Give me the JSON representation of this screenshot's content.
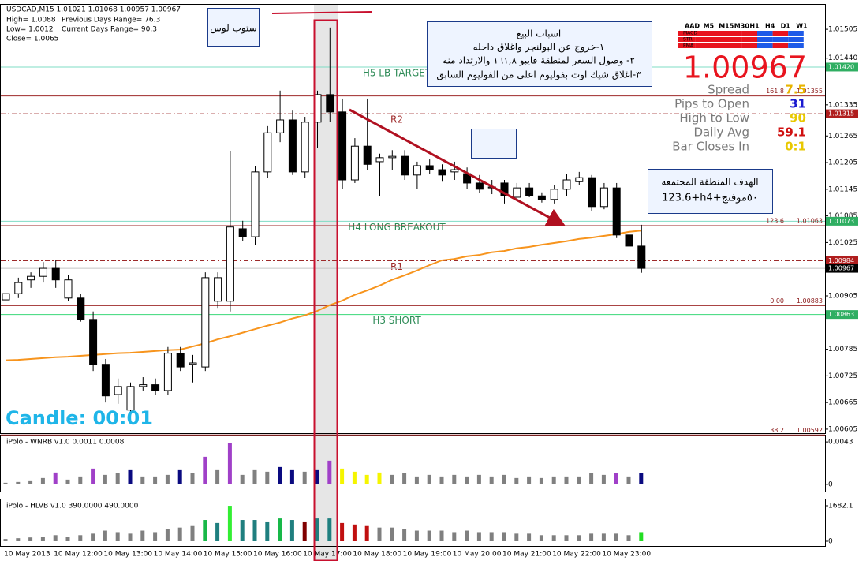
{
  "chart_data": [
    {
      "type": "candlestick",
      "title": "USDCAD,M15  1.01021 1.01068 1.00957 1.00967",
      "categories": [
        "10 May 2013",
        null,
        null,
        null,
        "10 May 12:00",
        null,
        null,
        null,
        "10 May 13:00",
        null,
        null,
        null,
        "10 May 14:00",
        null,
        null,
        null,
        "10 May 15:00",
        null,
        null,
        null,
        "10 May 16:00",
        null,
        null,
        null,
        "10 May 17:00",
        null,
        null,
        null,
        "10 May 18:00",
        null,
        null,
        null,
        "10 May 19:00",
        null,
        null,
        null,
        "10 May 20:00",
        null,
        null,
        null,
        "10 May 21:00",
        null,
        null,
        null,
        "10 May 22:00",
        null,
        null,
        null,
        "10 May 23:00",
        null,
        null,
        null
      ],
      "open": [
        1.00896,
        1.0091,
        1.00941,
        1.00949,
        1.00967,
        1.009,
        1.009,
        1.00852,
        1.00751,
        1.00683,
        1.00648,
        1.00701,
        1.00705,
        1.00692,
        1.00776,
        1.00751,
        1.00745,
        1.00893,
        1.00893,
        1.01056,
        1.01038,
        1.01184,
        1.01272,
        1.01301,
        1.01184,
        1.01296,
        1.01358,
        1.01319,
        1.01166,
        1.01242,
        1.01207,
        1.01216,
        1.01219,
        1.01177,
        1.01198,
        1.01189,
        1.01184,
        1.0118,
        1.01159,
        1.01148,
        1.01159,
        1.01127,
        1.01148,
        1.0113,
        1.01122,
        1.01145,
        1.01162,
        1.01171,
        1.01106,
        1.01148,
        1.01042,
        1.01017
      ],
      "high": [
        1.00932,
        1.00946,
        1.00958,
        1.00981,
        1.00985,
        1.00953,
        1.0091,
        1.0087,
        1.00763,
        1.00719,
        1.0071,
        1.00722,
        1.00719,
        1.0079,
        1.0079,
        1.00772,
        1.00958,
        1.00958,
        1.0123,
        1.01074,
        1.01198,
        1.01287,
        1.01367,
        1.01322,
        1.01308,
        1.01367,
        1.01509,
        1.01349,
        1.0126,
        1.01349,
        1.01225,
        1.01233,
        1.01233,
        1.01207,
        1.01212,
        1.01201,
        1.01207,
        1.01194,
        1.01177,
        1.01166,
        1.01166,
        1.01159,
        1.01159,
        1.01138,
        1.01154,
        1.0118,
        1.01184,
        1.01177,
        1.01159,
        1.01159,
        1.01065,
        1.01065
      ],
      "low": [
        1.00882,
        1.009,
        1.00923,
        1.00935,
        1.00923,
        1.00893,
        1.00847,
        1.00736,
        1.00665,
        1.00662,
        1.00639,
        1.00692,
        1.00683,
        1.00683,
        1.00736,
        1.0071,
        1.00736,
        1.00878,
        1.0087,
        1.01029,
        1.0102,
        1.01171,
        1.01251,
        1.01177,
        1.01171,
        1.01237,
        1.01296,
        1.01145,
        1.01159,
        1.01189,
        1.0113,
        1.01189,
        1.01166,
        1.01145,
        1.0118,
        1.01162,
        1.01166,
        1.01145,
        1.01136,
        1.01134,
        1.01113,
        1.01118,
        1.01127,
        1.01115,
        1.01113,
        1.0113,
        1.01154,
        1.01095,
        1.011,
        1.01035,
        1.01012,
        1.00957
      ],
      "close": [
        1.0091,
        1.00935,
        1.00949,
        1.00967,
        1.00941,
        1.00941,
        1.00852,
        1.00751,
        1.0068,
        1.00701,
        1.00701,
        1.00705,
        1.00692,
        1.00776,
        1.00745,
        1.00754,
        1.00946,
        1.00946,
        1.0106,
        1.01038,
        1.01184,
        1.01272,
        1.01301,
        1.01184,
        1.01296,
        1.01358,
        1.01319,
        1.01166,
        1.01242,
        1.01201,
        1.01216,
        1.01219,
        1.01177,
        1.01198,
        1.01189,
        1.01177,
        1.01189,
        1.01159,
        1.01145,
        1.0115,
        1.0113,
        1.01148,
        1.0113,
        1.01122,
        1.01145,
        1.01166,
        1.01171,
        1.01106,
        1.01148,
        1.01042,
        1.01017,
        1.00967
      ],
      "up_color": "#ffffff",
      "down_color": "#000000",
      "moving_average": {
        "color": "#f7941d",
        "values": [
          1.0076,
          1.00761,
          1.00763,
          1.00765,
          1.00767,
          1.00768,
          1.0077,
          1.00772,
          1.00774,
          1.00776,
          1.00777,
          1.00779,
          1.00781,
          1.00783,
          1.00784,
          1.00791,
          1.00798,
          1.00807,
          1.00814,
          1.00822,
          1.0083,
          1.00838,
          1.00845,
          1.00854,
          1.00861,
          1.00871,
          1.00884,
          1.00894,
          1.00907,
          1.00917,
          1.00928,
          1.00941,
          1.00951,
          1.00962,
          1.00974,
          1.00985,
          1.00988,
          1.00994,
          1.00997,
          1.01003,
          1.01006,
          1.01012,
          1.01015,
          1.0102,
          1.01024,
          1.01028,
          1.01033,
          1.01036,
          1.0104,
          1.01044,
          1.01049,
          1.01052
        ]
      },
      "ylim": [
        1.00596,
        1.01562
      ],
      "yticks": [
        1.01505,
        {
          "value": 1.0144,
          "label": "1.01440"
        },
        1.01335,
        1.01265,
        1.01205,
        1.01145,
        1.01085,
        1.01025,
        1.00905,
        1.00785,
        1.00725,
        1.00665,
        1.00605
      ],
      "grid": false,
      "levels": [
        {
          "value": 1.0142,
          "name": "H5 LB TARGET",
          "color": "#7fdcc4",
          "tag": "1.01420",
          "tag_color": "#2fae62"
        },
        {
          "value": 1.01355,
          "fib": "161.8",
          "color": "#9e2a2a"
        },
        {
          "value": 1.01315,
          "name": "R2",
          "color": "#9e2a2a",
          "dash": true,
          "tag": "1.01315",
          "tag_color": "#b01e1e"
        },
        {
          "value": 1.01073,
          "name": "H4 LONG BREAKOUT",
          "color": "#7fdcc4",
          "tag": "1.01073",
          "tag_color": "#2fae62"
        },
        {
          "value": 1.01063,
          "fib": "123.6",
          "color": "#9e2a2a"
        },
        {
          "value": 1.00984,
          "name": "R1",
          "color": "#9e2a2a",
          "dash": true,
          "tag": "1.00984",
          "tag_color": "#b01e1e"
        },
        {
          "value": 1.00967,
          "color": "#c4c4c4",
          "tag": "1.00967",
          "tag_color": "#000000"
        },
        {
          "value": 1.00883,
          "fib": "0.00",
          "color": "#9e2a2a"
        },
        {
          "value": 1.00863,
          "name": "H3 SHORT",
          "color": "#3ad878",
          "tag": "1.00863",
          "tag_color": "#2fae62"
        },
        {
          "value": 1.00592,
          "fib": "38.2",
          "color": "#9e2a2a"
        }
      ]
    },
    {
      "type": "bar",
      "title": "iPolo - WNRB v1.0 0.0011 0.0008",
      "values": [
        0.00016,
        0.00024,
        0.0004,
        0.00064,
        0.0012,
        0.00048,
        0.0008,
        0.0016,
        0.00096,
        0.00112,
        0.00144,
        0.0008,
        0.0008,
        0.00096,
        0.00144,
        0.00112,
        0.0028,
        0.00144,
        0.0042,
        0.00096,
        0.00144,
        0.00128,
        0.00176,
        0.00144,
        0.00128,
        0.00144,
        0.0024,
        0.0016,
        0.00128,
        0.00096,
        0.0012,
        0.00096,
        0.00112,
        0.0008,
        0.00096,
        0.0008,
        0.00096,
        0.0008,
        0.00096,
        0.0008,
        0.00096,
        0.00064,
        0.0008,
        0.00064,
        0.0008,
        0.0008,
        0.0008,
        0.00112,
        0.00096,
        0.00112,
        0.0008,
        0.00112
      ],
      "colors": [
        "#808080",
        "#808080",
        "#808080",
        "#808080",
        "#a040c8",
        "#808080",
        "#808080",
        "#a040c8",
        "#808080",
        "#808080",
        "#0a0a80",
        "#808080",
        "#808080",
        "#808080",
        "#0a0a80",
        "#808080",
        "#a040c8",
        "#808080",
        "#a040c8",
        "#808080",
        "#808080",
        "#808080",
        "#0a0a80",
        "#0a0a80",
        "#808080",
        "#0a0a80",
        "#a040c8",
        "#f5f500",
        "#f5f500",
        "#f5f500",
        "#f5f500",
        "#808080",
        "#808080",
        "#808080",
        "#808080",
        "#808080",
        "#808080",
        "#808080",
        "#808080",
        "#808080",
        "#808080",
        "#808080",
        "#808080",
        "#808080",
        "#808080",
        "#808080",
        "#808080",
        "#808080",
        "#808080",
        "#a040c8",
        "#808080",
        "#0a0a80"
      ],
      "ylim": [
        -0.00057,
        0.00487
      ],
      "yticks": [
        0,
        0.0043
      ]
    },
    {
      "type": "bar",
      "title": "iPolo - HLVB v1.0 390.0000 490.0000",
      "values": [
        108,
        144,
        180,
        216,
        288,
        216,
        288,
        360,
        504,
        432,
        360,
        504,
        432,
        576,
        648,
        720,
        1008,
        864,
        1680,
        1008,
        1008,
        936,
        1080,
        1008,
        936,
        1080,
        1080,
        864,
        792,
        720,
        648,
        648,
        576,
        504,
        504,
        504,
        432,
        504,
        432,
        432,
        432,
        360,
        360,
        288,
        288,
        288,
        288,
        360,
        360,
        360,
        288,
        432
      ],
      "colors": [
        "#7f7f7f",
        "#7f7f7f",
        "#7f7f7f",
        "#7f7f7f",
        "#7f7f7f",
        "#7f7f7f",
        "#7f7f7f",
        "#7f7f7f",
        "#7f7f7f",
        "#7f7f7f",
        "#7f7f7f",
        "#7f7f7f",
        "#7f7f7f",
        "#7f7f7f",
        "#7f7f7f",
        "#7f7f7f",
        "#18b848",
        "#1f7f7f",
        "#33ee33",
        "#1f7f7f",
        "#1f7f7f",
        "#1f7f7f",
        "#18b848",
        "#1f7f7f",
        "#800000",
        "#1f7f7f",
        "#1f7f7f",
        "#c01010",
        "#c01010",
        "#c01010",
        "#7f7f7f",
        "#7f7f7f",
        "#7f7f7f",
        "#7f7f7f",
        "#7f7f7f",
        "#7f7f7f",
        "#7f7f7f",
        "#7f7f7f",
        "#7f7f7f",
        "#7f7f7f",
        "#7f7f7f",
        "#7f7f7f",
        "#7f7f7f",
        "#7f7f7f",
        "#7f7f7f",
        "#7f7f7f",
        "#7f7f7f",
        "#7f7f7f",
        "#7f7f7f",
        "#7f7f7f",
        "#7f7f7f",
        "#22dd22"
      ],
      "ylim": [
        -149.5,
        1943.8
      ],
      "yticks": [
        0,
        1682.1
      ]
    }
  ],
  "info": {
    "high": "High= 1.0088",
    "low": "Low= 1.0012",
    "close": "Close= 1.0065",
    "previous_range": "Previous Days Range= 76.3",
    "current_range": "Current Days Range= 90.3",
    "candle_timer": "Candle:  00:01"
  },
  "dashboard": {
    "header": [
      "AAD",
      "M5",
      "M15",
      "M30",
      "H1",
      "H4",
      "D1",
      "W1"
    ],
    "rows": [
      {
        "name": "MACD",
        "signals": [
          "#e8141e",
          "#e8141e",
          "#e8141e",
          "#e8141e",
          "#1e5ae8",
          "#e8141e",
          "#1e5ae8"
        ]
      },
      {
        "name": "STR",
        "signals": [
          "#e8141e",
          "#e8141e",
          "#e8141e",
          "#e8141e",
          "#1e5ae8",
          "#1e5ae8",
          "#1e5ae8"
        ]
      },
      {
        "name": "EMA",
        "signals": [
          "#e8141e",
          "#e8141e",
          "#e8141e",
          "#e8141e",
          "#1e5ae8",
          "#e8141e",
          "#1e5ae8"
        ]
      }
    ],
    "price": "1.00967",
    "stats": [
      {
        "label": "Spread",
        "value": "7.5",
        "color": "#e8b400"
      },
      {
        "label": "Pips to Open",
        "value": "31",
        "color": "#1a1ad0"
      },
      {
        "label": "High to Low",
        "value": "90",
        "color": "#e8c800"
      },
      {
        "label": "Daily Avg",
        "value": "59.1",
        "color": "#d01010"
      },
      {
        "label": "Bar Closes In",
        "value": "0:1",
        "color": "#e8c800"
      }
    ]
  },
  "annotations": {
    "stop_loss": "ستوب لوس",
    "reasons": [
      "اسباب البيع",
      "١-خروج عن البولنجر واغلاق داخله",
      "٢- وصول السعر لمنطقة فايبو ١٦١,٨ والارتداد منه",
      "٣-اغلاق شيك اوت بفوليوم اعلى من الفوليوم السابق"
    ],
    "target": [
      "الهدف المنطقة المجتمعه",
      "123.6+h4+٥٠موفنج"
    ]
  }
}
